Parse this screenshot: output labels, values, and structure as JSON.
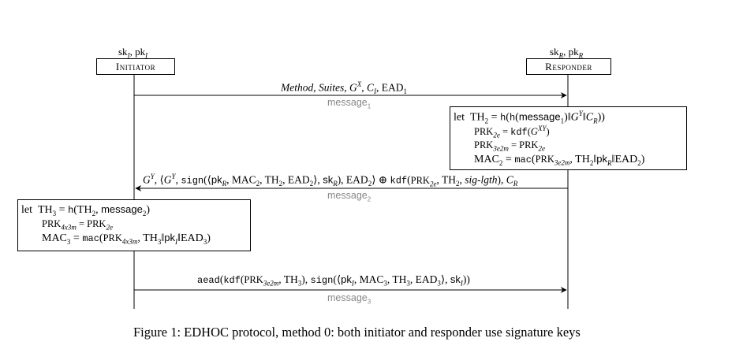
{
  "initiator": {
    "keys": "skᴵ, pkᴵ",
    "keys_text": "sk",
    "name": "Initiator"
  },
  "responder": {
    "keys": "skR, pkR",
    "name": "Responder"
  },
  "messages": [
    {
      "content": "Method, Suites, G^X, C_I, EAD_1",
      "label": "message_1",
      "direction": "initiator-to-responder"
    },
    {
      "content": "G^Y, ⟨G^Y, sign(⟨pk_R, MAC_2, TH_2, EAD_2⟩, sk_R), EAD_2⟩ ⊕ kdf(PRK_2e, TH_2, sig-lgth), C_R",
      "label": "message_2",
      "direction": "responder-to-initiator"
    },
    {
      "content": "aead(kdf(PRK_3e2m, TH_3), sign(⟨pk_I, MAC_3, TH_3, EAD_3⟩, sk_I))",
      "label": "message_3",
      "direction": "initiator-to-responder"
    }
  ],
  "responder_let": [
    "let TH_2 = h(h(message_1)‖G^Y‖C_R)",
    "PRK_2e = kdf(G^XY)",
    "PRK_3e2m = PRK_2e",
    "MAC_2 = mac(PRK_3e2m, TH_2‖pk_R‖EAD_2)"
  ],
  "initiator_let": [
    "let TH_3 = h(TH_2, message_2)",
    "PRK_4x3m = PRK_2e",
    "MAC_3 = mac(PRK_4x3m, TH_3‖pk_I‖EAD_3)"
  ],
  "caption": "Figure 1: EDHOC protocol, method 0: both initiator and responder use signature keys"
}
